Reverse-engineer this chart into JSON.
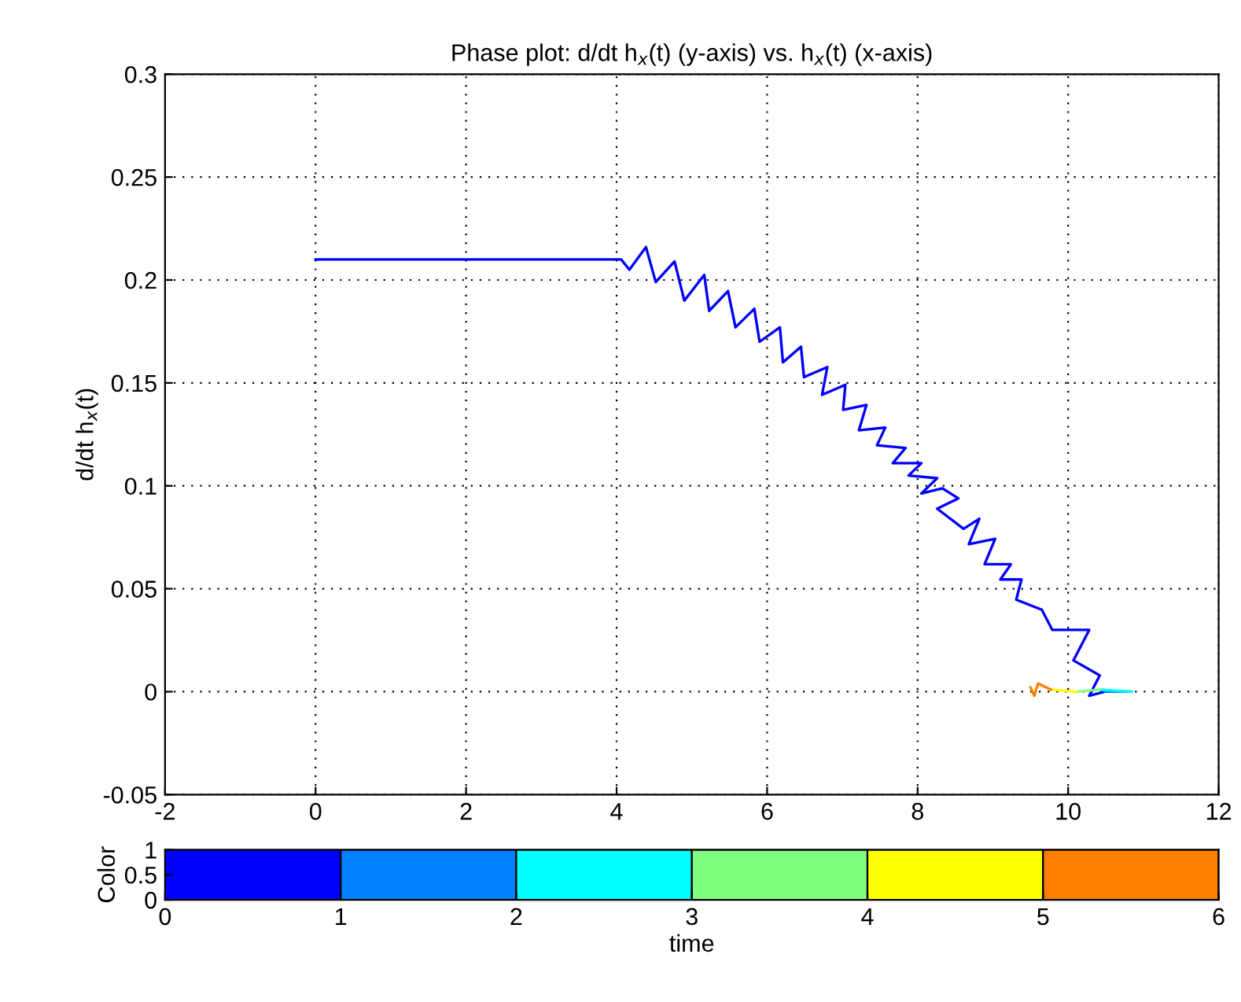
{
  "chart_data": [
    {
      "type": "line",
      "title": "Phase plot: d/dt h$_{x}$(t) (y-axis) vs. h$_{x}$(t) (x-axis)",
      "ylabel": "d/dt h$_{x}$(t)",
      "xlim": [
        -2,
        12
      ],
      "xticks": [
        -2,
        0,
        2,
        4,
        6,
        8,
        10,
        12
      ],
      "ylim": [
        -0.05,
        0.3
      ],
      "yticks": [
        -0.05,
        0,
        0.05,
        0.1,
        0.15,
        0.2,
        0.25,
        0.3
      ],
      "grid": true,
      "line_style": "solid",
      "marker": "none",
      "series": [
        {
          "color": "#0000ff",
          "x": [
            0,
            4.06,
            4.17,
            4.39,
            4.52,
            4.77,
            4.9,
            5.165,
            5.23,
            5.48,
            5.58,
            5.83,
            5.9,
            6.17,
            6.21,
            6.45,
            6.49,
            6.8,
            6.73,
            7.04,
            7.01,
            7.32,
            7.22,
            7.57,
            7.46,
            7.84,
            7.67,
            8.05,
            7.88,
            8.26,
            8.05,
            8.33,
            8.54,
            8.26,
            8.61,
            8.82,
            8.68,
            9.03,
            8.89,
            9.24,
            9.1,
            9.38,
            9.31,
            9.65,
            9.79,
            10.28,
            10.07,
            10.42,
            10.28,
            10.49
          ],
          "values": [
            0.21,
            0.21,
            0.205,
            0.216,
            0.199,
            0.209,
            0.19,
            0.2025,
            0.185,
            0.1946,
            0.177,
            0.186,
            0.17,
            0.177,
            0.16,
            0.1676,
            0.1528,
            0.1577,
            0.1442,
            0.1491,
            0.1369,
            0.1393,
            0.127,
            0.1283,
            0.1197,
            0.1184,
            0.111,
            0.111,
            0.105,
            0.1037,
            0.0963,
            0.0988,
            0.0939,
            0.0889,
            0.0791,
            0.084,
            0.0717,
            0.0742,
            0.0619,
            0.0619,
            0.0545,
            0.0545,
            0.0447,
            0.0398,
            0.03,
            0.03,
            0.0152,
            0.0079,
            -0.002,
            0.0
          ]
        },
        {
          "color": "#0080ff",
          "x": [
            10.49,
            10.84
          ],
          "values": [
            0.0,
            0.0
          ]
        },
        {
          "color": "#00ffff",
          "x": [
            10.84,
            10.42
          ],
          "values": [
            0.0,
            0.001
          ]
        },
        {
          "color": "#80ff80",
          "x": [
            10.42,
            10.11
          ],
          "values": [
            0.001,
            0.0
          ]
        },
        {
          "color": "#ffff00",
          "x": [
            10.11,
            9.77
          ],
          "values": [
            0.0,
            0.001
          ]
        },
        {
          "color": "#ff8000",
          "x": [
            9.77,
            9.6,
            9.55,
            9.5
          ],
          "values": [
            0.001,
            0.004,
            -0.002,
            0.002
          ]
        }
      ]
    },
    {
      "type": "bar",
      "xlabel": "time",
      "ylabel": "Color",
      "x": [
        0.5,
        1.5,
        2.5,
        3.5,
        4.5,
        5.5
      ],
      "values": [
        1,
        1,
        1,
        1,
        1,
        1
      ],
      "colors": [
        "#0000ff",
        "#0080ff",
        "#00ffff",
        "#80ff80",
        "#ffff00",
        "#ff8000"
      ],
      "xlim": [
        0,
        6
      ],
      "xticks": [
        0,
        1,
        2,
        3,
        4,
        5,
        6
      ],
      "ylim": [
        0,
        1
      ],
      "yticks": [
        0,
        0.5,
        1
      ]
    }
  ]
}
